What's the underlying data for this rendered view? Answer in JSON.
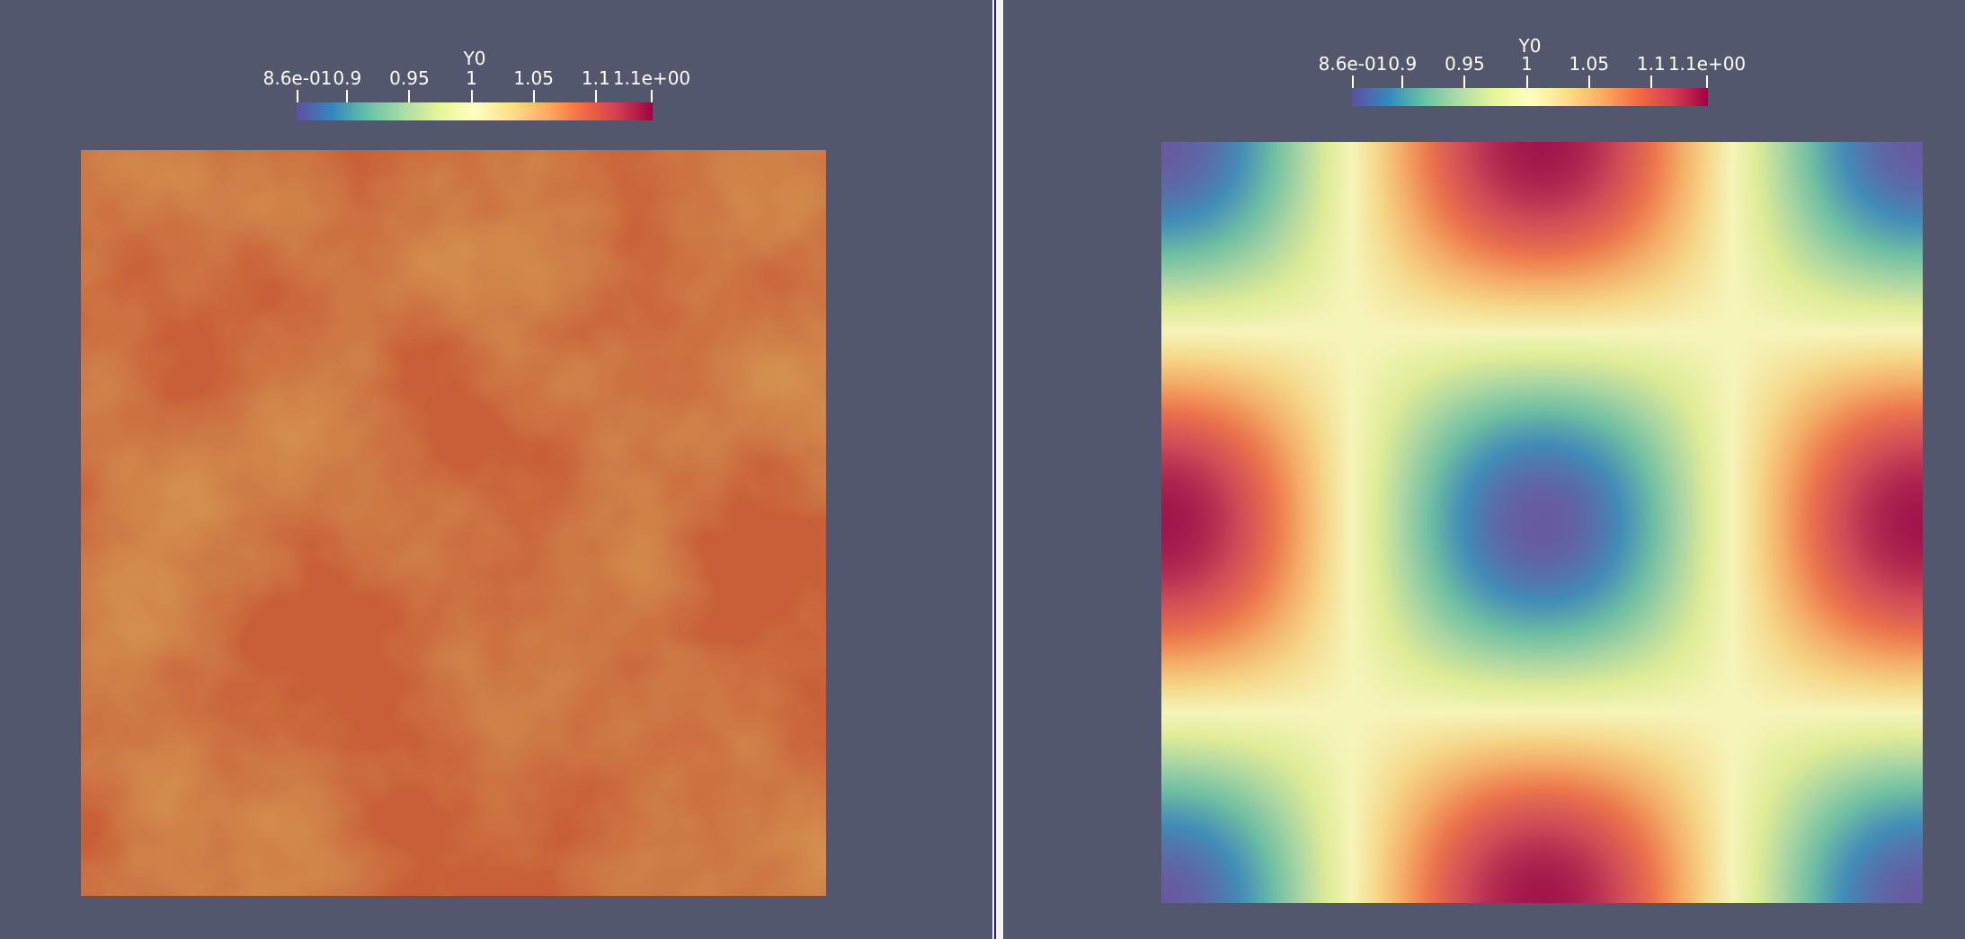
{
  "colors": {
    "background": "#52576e",
    "divider": "#f4f4f6",
    "divider_active": "#1c1cc8",
    "colormap": [
      "#5e4fa2",
      "#3288bd",
      "#66c2a5",
      "#abdda4",
      "#e6f598",
      "#ffffbf",
      "#fee08b",
      "#fdae61",
      "#f46d43",
      "#d53e4f",
      "#9e0142"
    ]
  },
  "colormap_name": "Spectral (reversed)",
  "scalar_range": [
    0.86,
    1.1
  ],
  "views": [
    {
      "id": "left",
      "colorbar": {
        "title": "Y0",
        "ticks": [
          {
            "label": "8.6e-01",
            "value": 0.86
          },
          {
            "label": "0.9",
            "value": 0.9
          },
          {
            "label": "0.95",
            "value": 0.95
          },
          {
            "label": "1",
            "value": 1.0
          },
          {
            "label": "1.05",
            "value": 1.05
          },
          {
            "label": "1.1",
            "value": 1.1
          },
          {
            "label": "1.1e+00",
            "value": 1.145
          }
        ]
      },
      "field": "random-noise"
    },
    {
      "id": "right",
      "colorbar": {
        "title": "Y0",
        "ticks": [
          {
            "label": "8.6e-01",
            "value": 0.86
          },
          {
            "label": "0.9",
            "value": 0.9
          },
          {
            "label": "0.95",
            "value": 0.95
          },
          {
            "label": "1",
            "value": 1.0
          },
          {
            "label": "1.05",
            "value": 1.05
          },
          {
            "label": "1.1",
            "value": 1.1
          },
          {
            "label": "1.1e+00",
            "value": 1.145
          }
        ]
      },
      "field": "sinusoidal-cosine-pattern"
    }
  ]
}
